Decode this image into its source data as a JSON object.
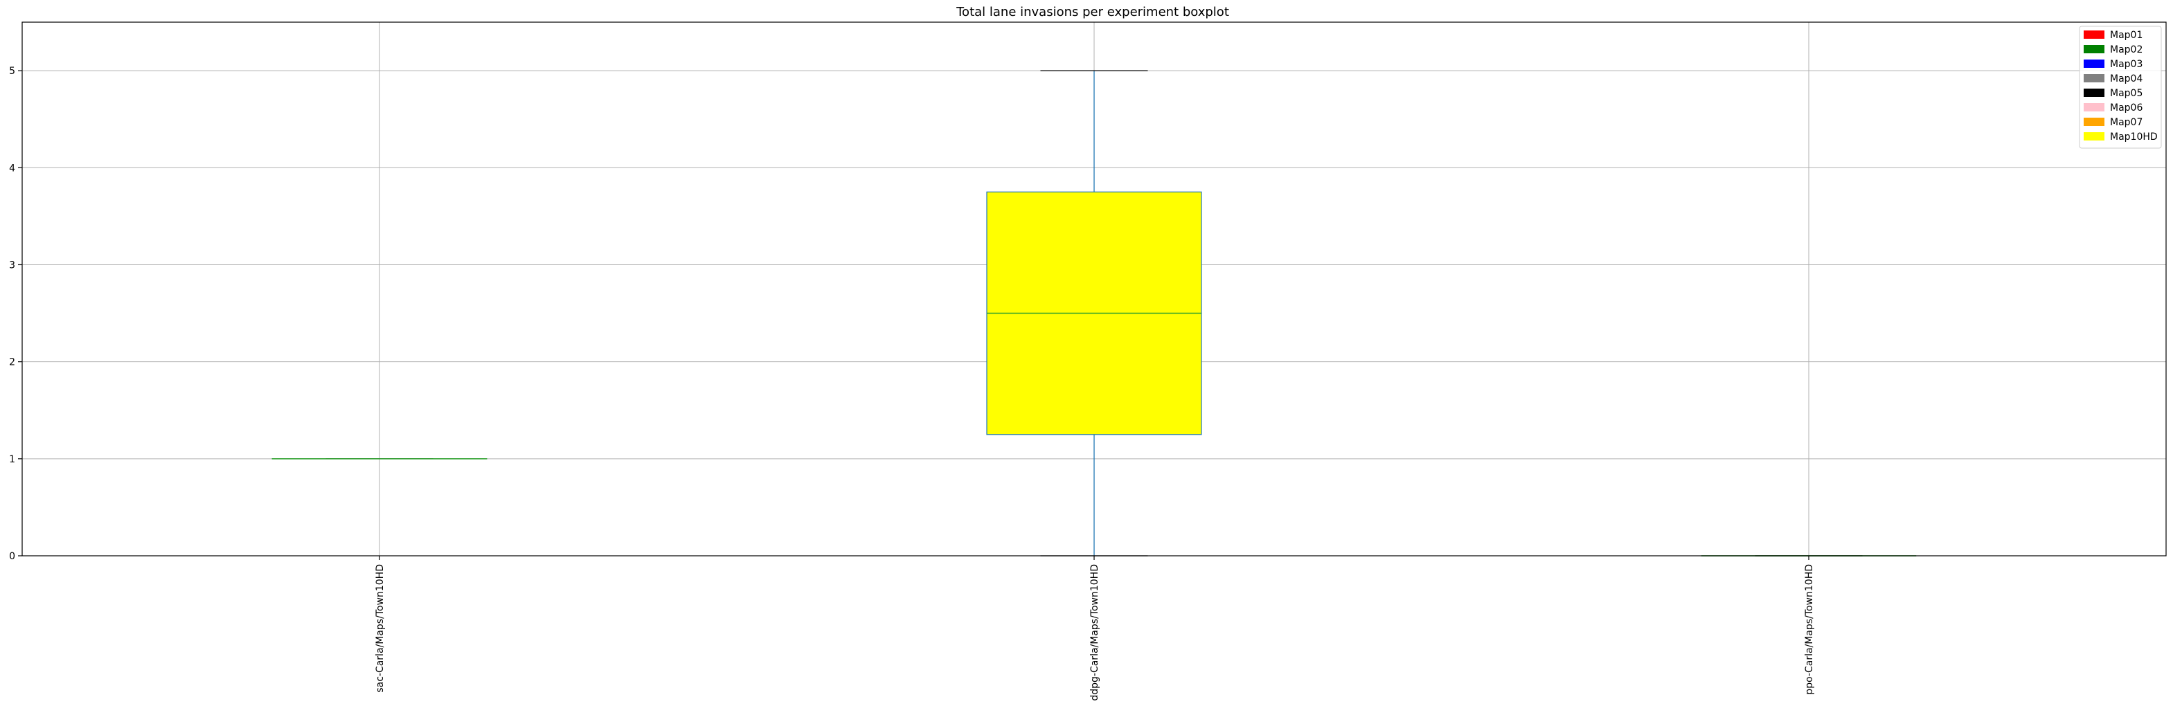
{
  "chart_data": {
    "type": "boxplot",
    "title": "Total lane invasions per experiment boxplot",
    "xlabel": "",
    "ylabel": "",
    "ylim": [
      0,
      5.5
    ],
    "yticks": [
      0,
      1,
      2,
      3,
      4,
      5
    ],
    "grid": true,
    "categories": [
      "sac-Carla/Maps/Town10HD",
      "ddpg-Carla/Maps/Town10HD",
      "ppo-Carla/Maps/Town10HD"
    ],
    "boxes": [
      {
        "category": "sac-Carla/Maps/Town10HD",
        "min": 1,
        "q1": 1,
        "median": 1,
        "q3": 1,
        "max": 1,
        "fill": "#008000"
      },
      {
        "category": "ddpg-Carla/Maps/Town10HD",
        "min": 0,
        "q1": 1.25,
        "median": 2.5,
        "q3": 3.75,
        "max": 5,
        "fill": "#ffff00"
      },
      {
        "category": "ppo-Carla/Maps/Town10HD",
        "min": 0,
        "q1": 0,
        "median": 0,
        "q3": 0,
        "max": 0,
        "fill": "#008000"
      }
    ],
    "legend": {
      "placement": "top-right",
      "entries": [
        {
          "label": "Map01",
          "color": "#ff0000"
        },
        {
          "label": "Map02",
          "color": "#008000"
        },
        {
          "label": "Map03",
          "color": "#0000ff"
        },
        {
          "label": "Map04",
          "color": "#808080"
        },
        {
          "label": "Map05",
          "color": "#000000"
        },
        {
          "label": "Map06",
          "color": "#ffc0cb"
        },
        {
          "label": "Map07",
          "color": "#ffa500"
        },
        {
          "label": "Map10HD",
          "color": "#ffff00"
        }
      ]
    },
    "colors": {
      "whisker": "#1f77b4",
      "median": "#2ca02c",
      "grid": "#b0b0b0"
    }
  }
}
